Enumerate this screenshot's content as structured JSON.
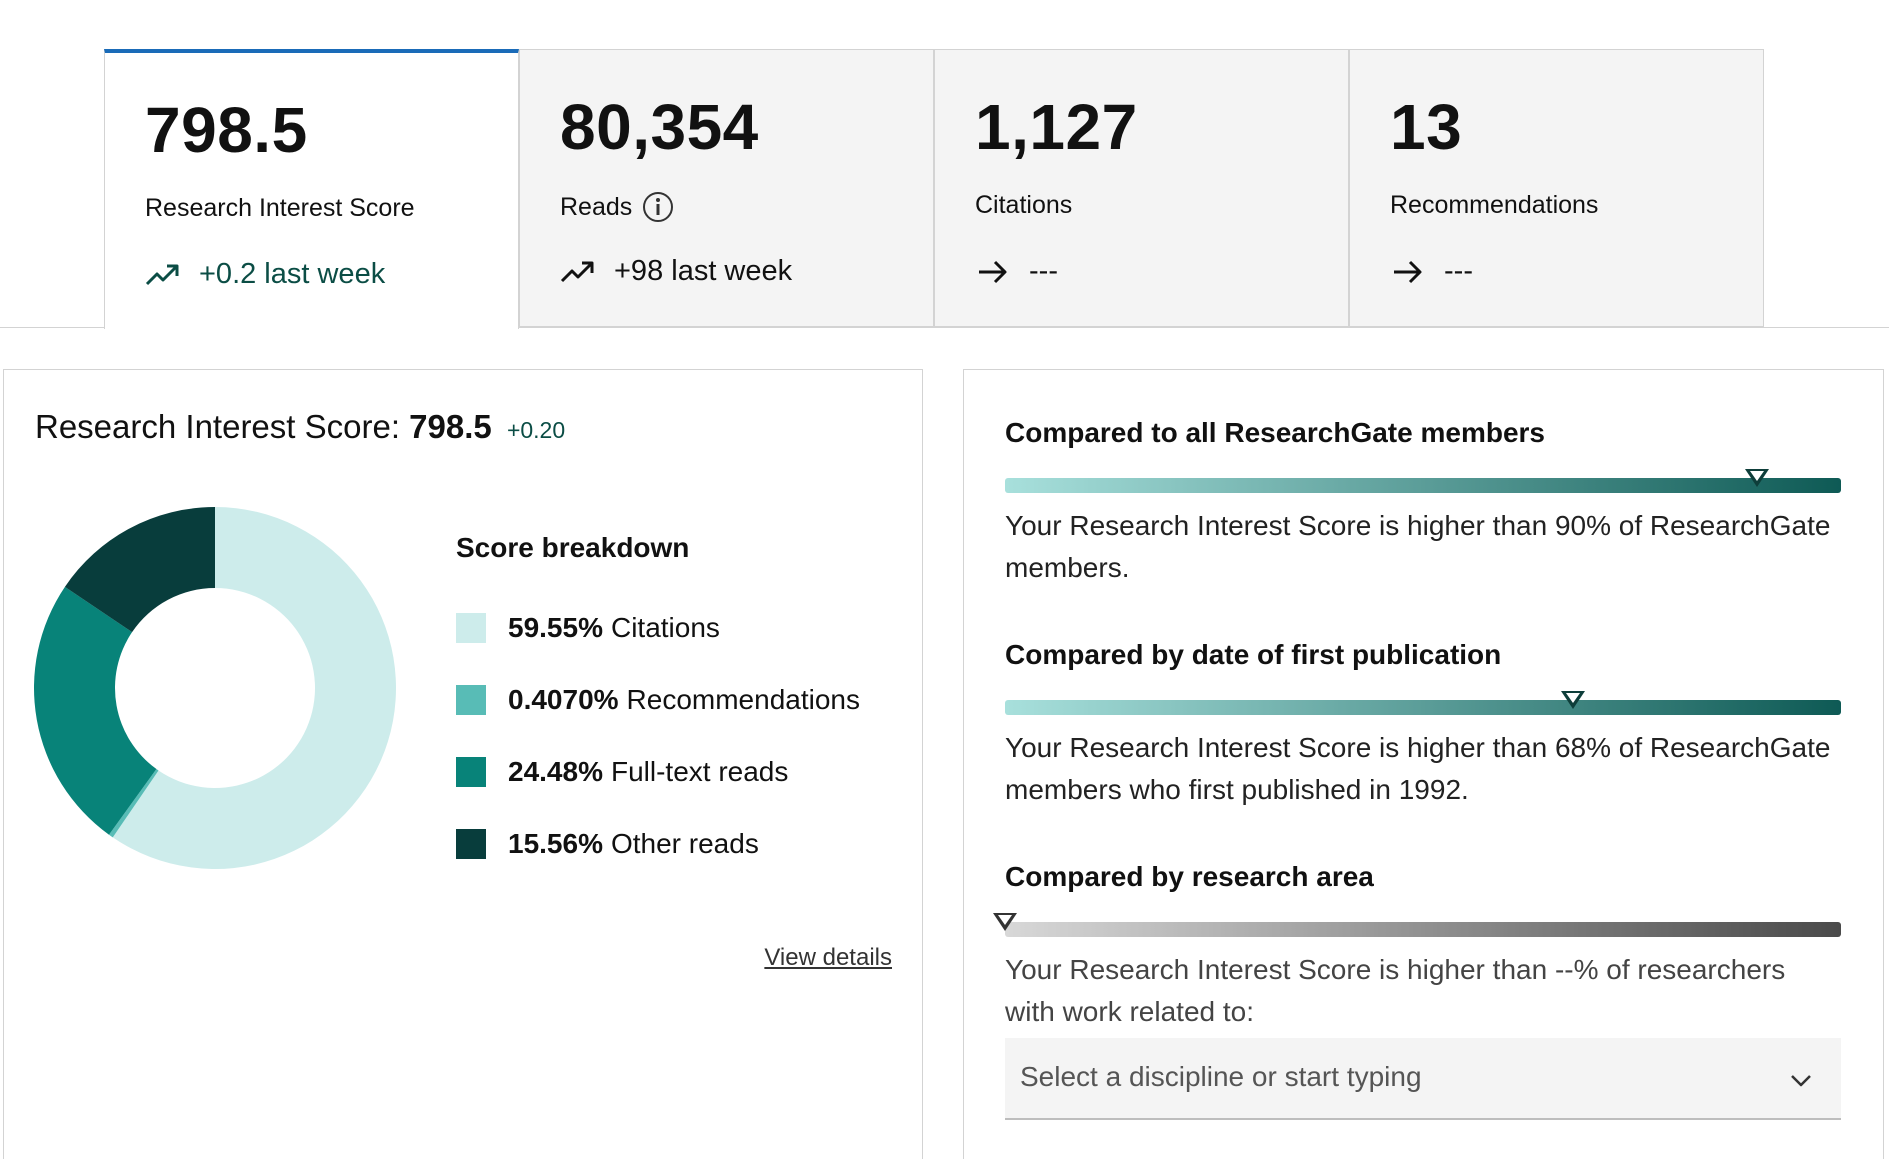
{
  "tabs": [
    {
      "value": "798.5",
      "label": "Research Interest Score",
      "trend": "+0.2 last week",
      "trend_icon": "trend-up-icon",
      "active": true
    },
    {
      "value": "80,354",
      "label": "Reads",
      "has_info": true,
      "trend": "+98 last week",
      "trend_icon": "trend-up-icon"
    },
    {
      "value": "1,127",
      "label": "Citations",
      "trend": "---",
      "trend_icon": "arrow-right-icon"
    },
    {
      "value": "13",
      "label": "Recommendations",
      "trend": "---",
      "trend_icon": "arrow-right-icon"
    }
  ],
  "score_panel": {
    "title_prefix": "Research Interest Score:",
    "score": "798.5",
    "delta": "+0.20",
    "breakdown_title": "Score breakdown",
    "view_details": "View details"
  },
  "chart_data": {
    "type": "pie",
    "donut": true,
    "categories": [
      "Citations",
      "Recommendations",
      "Full-text reads",
      "Other reads"
    ],
    "values": [
      59.55,
      0.407,
      24.48,
      15.56
    ],
    "labels": [
      "59.55%",
      "0.4070%",
      "24.48%",
      "15.56%"
    ],
    "colors": [
      "#cdeceb",
      "#58bcb6",
      "#088379",
      "#083d3c"
    ]
  },
  "comparisons": [
    {
      "title": "Compared to all ResearchGate members",
      "percentile": 90,
      "style": "teal",
      "text": "Your Research Interest Score is higher than 90% of ResearchGate members."
    },
    {
      "title": "Compared by date of first publication",
      "percentile": 68,
      "style": "teal",
      "text": "Your Research Interest Score is higher than 68% of ResearchGate members who first published in 1992."
    },
    {
      "title": "Compared by research area",
      "percentile": 0,
      "style": "grey",
      "text": "Your Research Interest Score is higher than --% of researchers with work related to:"
    }
  ],
  "discipline_select": {
    "placeholder": "Select a discipline or start typing",
    "icon": "chevron-down-icon"
  }
}
